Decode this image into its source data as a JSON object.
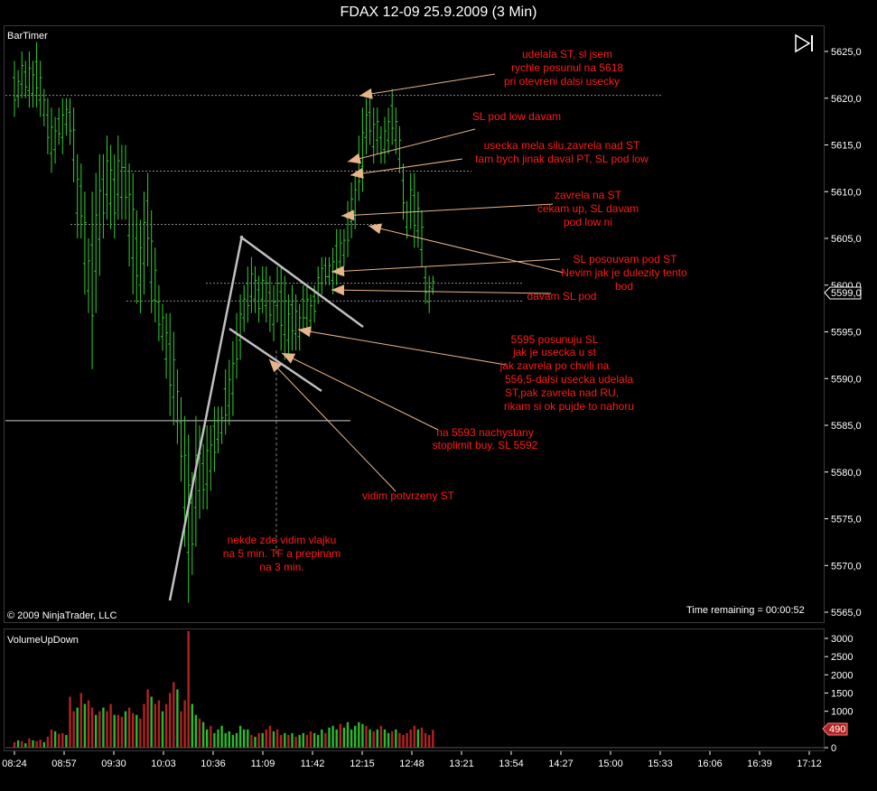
{
  "window": {
    "title": "FDAX 12-09  25.9.2009 (3 Min)",
    "price_indicator": "BarTimer",
    "volume_indicator": "VolumeUpDown",
    "copyright": "© 2009 NinjaTrader, LLC",
    "time_remaining": "Time remaining = 00:00:52"
  },
  "colors": {
    "background": "#000000",
    "price_bars": "#32cd32",
    "volume_up": "#2db82d",
    "volume_down": "#b22222",
    "annotation_text": "#ff1a1a",
    "annotation_arrow": "#e8b48a",
    "trendline": "#c0c0c0",
    "current_price_box": "#ffffff",
    "last_volume_box": "#b22222"
  },
  "chart_data": [
    {
      "type": "ohlc",
      "y_ticks": [
        "5625,0",
        "5620,0",
        "5615,0",
        "5610,0",
        "5605,0",
        "5600,0",
        "5595,0",
        "5590,0",
        "5585,0",
        "5580,0",
        "5575,0",
        "5570,0",
        "5565,0"
      ],
      "x_ticks": [
        "08:24",
        "08:57",
        "09:30",
        "10:03",
        "10:36",
        "11:09",
        "11:42",
        "12:15",
        "12:48",
        "13:21",
        "13:54",
        "14:27",
        "15:00",
        "15:33",
        "16:06",
        "16:39",
        "17:12"
      ],
      "ylim": [
        5565,
        5625
      ],
      "current_price_label": "5599,0",
      "current_price": 5599.0,
      "bars_hl": [
        [
          5624,
          5618
        ],
        [
          5623,
          5619
        ],
        [
          5625,
          5620
        ],
        [
          5624,
          5620
        ],
        [
          5625,
          5619
        ],
        [
          5624,
          5619
        ],
        [
          5626,
          5619
        ],
        [
          5624,
          5618
        ],
        [
          5621,
          5617
        ],
        [
          5620,
          5614
        ],
        [
          5619,
          5612
        ],
        [
          5618,
          5613
        ],
        [
          5619,
          5615
        ],
        [
          5620,
          5614
        ],
        [
          5620,
          5616
        ],
        [
          5620,
          5615
        ],
        [
          5619,
          5611
        ],
        [
          5614,
          5605
        ],
        [
          5613,
          5605
        ],
        [
          5610,
          5599
        ],
        [
          5605,
          5597
        ],
        [
          5610,
          5591
        ],
        [
          5612,
          5597
        ],
        [
          5614,
          5601
        ],
        [
          5614,
          5605
        ],
        [
          5616,
          5607
        ],
        [
          5615,
          5606
        ],
        [
          5614,
          5605
        ],
        [
          5616,
          5607
        ],
        [
          5615,
          5607
        ],
        [
          5615,
          5607
        ],
        [
          5613,
          5602
        ],
        [
          5612,
          5599
        ],
        [
          5608,
          5598
        ],
        [
          5607,
          5597
        ],
        [
          5610,
          5599
        ],
        [
          5612,
          5602
        ],
        [
          5608,
          5597
        ],
        [
          5604,
          5596
        ],
        [
          5600,
          5594
        ],
        [
          5598,
          5593
        ],
        [
          5597,
          5590
        ],
        [
          5597,
          5586
        ],
        [
          5595,
          5585
        ],
        [
          5591,
          5583
        ],
        [
          5588,
          5579
        ],
        [
          5586,
          5572
        ],
        [
          5584,
          5566
        ],
        [
          5580,
          5569
        ],
        [
          5586,
          5572
        ],
        [
          5585,
          5575
        ],
        [
          5583,
          5576
        ],
        [
          5585,
          5576
        ],
        [
          5585,
          5578
        ],
        [
          5587,
          5580
        ],
        [
          5587,
          5582
        ],
        [
          5587,
          5583
        ],
        [
          5591,
          5584
        ],
        [
          5592,
          5585
        ],
        [
          5594,
          5586
        ],
        [
          5597,
          5590
        ],
        [
          5599,
          5592
        ],
        [
          5600,
          5595
        ],
        [
          5602,
          5596
        ],
        [
          5603,
          5597
        ],
        [
          5602,
          5597
        ],
        [
          5601,
          5596
        ],
        [
          5602,
          5597
        ],
        [
          5602,
          5596
        ],
        [
          5601,
          5595
        ],
        [
          5600,
          5594
        ],
        [
          5602,
          5596
        ],
        [
          5602,
          5593
        ],
        [
          5601,
          5592
        ],
        [
          5599,
          5592
        ],
        [
          5600,
          5593
        ],
        [
          5599,
          5593
        ],
        [
          5598,
          5593
        ],
        [
          5600,
          5595
        ],
        [
          5600,
          5595
        ],
        [
          5599,
          5595
        ],
        [
          5600,
          5596
        ],
        [
          5602,
          5598
        ],
        [
          5603,
          5599
        ],
        [
          5603,
          5600
        ],
        [
          5603,
          5600
        ],
        [
          5604,
          5599
        ],
        [
          5606,
          5600
        ],
        [
          5606,
          5601
        ],
        [
          5606,
          5602
        ],
        [
          5609,
          5603
        ],
        [
          5611,
          5605
        ],
        [
          5612,
          5606
        ],
        [
          5616,
          5609
        ],
        [
          5619,
          5610
        ],
        [
          5620,
          5614
        ],
        [
          5620,
          5615
        ],
        [
          5619,
          5613
        ],
        [
          5619,
          5614
        ],
        [
          5617,
          5613
        ],
        [
          5618,
          5613
        ],
        [
          5619,
          5614
        ],
        [
          5621,
          5615
        ],
        [
          5619,
          5614
        ],
        [
          5617,
          5612
        ],
        [
          5613,
          5607
        ],
        [
          5609,
          5605
        ],
        [
          5612,
          5606
        ],
        [
          5612,
          5604
        ],
        [
          5610,
          5604
        ],
        [
          5608,
          5602
        ],
        [
          5602,
          5598
        ],
        [
          5601,
          5597
        ],
        [
          5601,
          5599
        ]
      ],
      "horizontal_levels": [
        5620.3,
        5612.2,
        5606.5,
        5600.2,
        5598.3,
        5585.5
      ]
    },
    {
      "type": "bar",
      "y_ticks": [
        "3000",
        "2500",
        "2000",
        "1500",
        "1000",
        "500",
        "0"
      ],
      "ylim": [
        0,
        3200
      ],
      "last_volume_label": "490",
      "last_volume": 490,
      "values": [
        150,
        200,
        180,
        120,
        250,
        200,
        180,
        220,
        150,
        300,
        500,
        450,
        380,
        400,
        350,
        1400,
        1000,
        1100,
        1500,
        1200,
        1300,
        1100,
        900,
        1000,
        1100,
        1000,
        1200,
        900,
        900,
        850,
        1000,
        1100,
        950,
        900,
        800,
        1200,
        1600,
        1400,
        1200,
        1300,
        1000,
        1200,
        1500,
        1800,
        1600,
        1000,
        1300,
        3200,
        1200,
        900,
        800,
        700,
        500,
        600,
        400,
        500,
        600,
        400,
        450,
        350,
        400,
        600,
        500,
        500,
        350,
        300,
        400,
        400,
        500,
        600,
        450,
        500,
        350,
        400,
        350,
        400,
        300,
        350,
        400,
        350,
        450,
        400,
        350,
        500,
        400,
        550,
        600,
        500,
        650,
        550,
        700,
        500,
        600,
        700,
        650,
        600,
        500,
        450,
        500,
        600,
        500,
        400,
        450,
        500,
        400,
        350,
        400,
        500,
        600,
        500,
        550,
        400,
        350,
        490
      ],
      "up_flags": [
        0,
        1,
        0,
        1,
        0,
        1,
        0,
        0,
        1,
        0,
        0,
        1,
        0,
        0,
        1,
        0,
        0,
        1,
        0,
        1,
        0,
        0,
        1,
        0,
        1,
        0,
        0,
        1,
        0,
        0,
        1,
        0,
        0,
        1,
        0,
        0,
        0,
        1,
        0,
        0,
        1,
        0,
        0,
        0,
        1,
        0,
        0,
        0,
        1,
        1,
        0,
        1,
        1,
        0,
        1,
        1,
        1,
        1,
        1,
        1,
        1,
        1,
        1,
        1,
        0,
        1,
        0,
        1,
        0,
        0,
        1,
        0,
        0,
        1,
        0,
        1,
        0,
        1,
        1,
        0,
        0,
        1,
        1,
        1,
        0,
        1,
        1,
        1,
        0,
        1,
        1,
        1,
        1,
        1,
        1,
        0,
        1,
        0,
        1,
        0,
        1,
        1,
        0,
        1,
        0,
        0,
        0,
        0,
        0,
        1,
        0,
        0,
        0,
        0
      ]
    }
  ],
  "annotations": {
    "a1": [
      "udelala ST, sl jsem",
      "rychle posunul na 5618",
      "pri otevreni dalsi usecky"
    ],
    "a2": [
      "SL pod low davam"
    ],
    "a3": [
      "usecka mela silu,zavrela nad ST",
      "tam bych jinak daval PT, SL pod low"
    ],
    "a4": [
      "zavrela na ST",
      "cekam up, SL davam",
      "pod low ni"
    ],
    "a5": [
      "SL posouvam pod ST"
    ],
    "a6": [
      "Nevim jak je dulezity tento",
      "bod"
    ],
    "a7": [
      "davam SL pod"
    ],
    "a8": [
      "5595 posunuju SL",
      "jak je usecka u st",
      "jak zavrela po chvili na",
      "556,5-dalsi usecka udelala",
      "ST,pak zavrela nad RU,",
      "rikam si ok pujde to nahoru"
    ],
    "a9": [
      "na 5593 nachystany",
      "stoplimit buy. SL 5592"
    ],
    "a10": [
      "vidim potvrzeny ST"
    ],
    "a11": [
      "nekde zde vidim vlajku",
      "na 5 min. TF a prepinam",
      "na 3 min."
    ]
  },
  "icons": {
    "panel_toggle": "skip-forward-icon"
  }
}
